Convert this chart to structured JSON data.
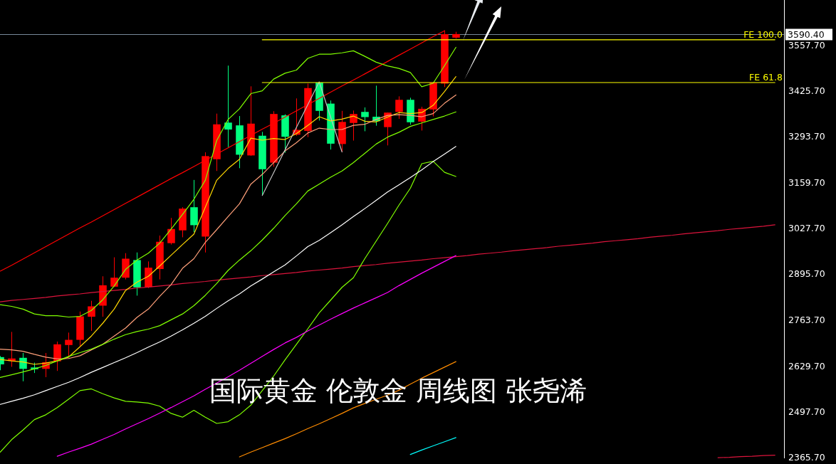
{
  "chart_data": {
    "type": "candlestick",
    "title": "国际黄金 伦敦金 周线图 张尧浠",
    "categories": [
      null,
      null,
      null,
      null,
      null,
      null,
      null,
      null,
      null,
      null,
      null,
      null,
      null,
      null,
      null,
      null,
      null,
      null,
      null,
      null,
      null,
      null,
      null,
      null,
      null,
      null,
      null,
      null,
      null,
      null,
      null,
      null,
      null,
      null,
      null,
      null,
      null,
      null,
      null,
      null,
      null,
      null,
      null,
      null,
      null,
      null,
      null,
      null,
      null,
      null,
      null,
      null,
      null,
      null,
      null,
      null,
      null,
      null,
      null,
      null,
      null,
      null,
      null,
      null,
      null,
      null,
      null,
      null,
      null
    ],
    "ohlc": [
      [
        2655,
        2658,
        2617,
        2634
      ],
      [
        2644,
        2728,
        2627,
        2651
      ],
      [
        2653,
        2667,
        2585,
        2621
      ],
      [
        2625,
        2639,
        2609,
        2620
      ],
      [
        2621,
        2667,
        2597,
        2640
      ],
      [
        2643,
        2700,
        2615,
        2692
      ],
      [
        2690,
        2726,
        2658,
        2705
      ],
      [
        2705,
        2787,
        2688,
        2773
      ],
      [
        2772,
        2818,
        2731,
        2802
      ],
      [
        2804,
        2889,
        2772,
        2863
      ],
      [
        2859,
        2944,
        2858,
        2885
      ],
      [
        2885,
        2956,
        2880,
        2940
      ],
      [
        2936,
        2958,
        2833,
        2857
      ],
      [
        2858,
        2932,
        2855,
        2914
      ],
      [
        2910,
        3007,
        2880,
        2989
      ],
      [
        2985,
        3058,
        2981,
        3026
      ],
      [
        3022,
        3089,
        3002,
        3085
      ],
      [
        3089,
        3168,
        3017,
        3037
      ],
      [
        3004,
        3248,
        2958,
        3237
      ],
      [
        3228,
        3360,
        3194,
        3329
      ],
      [
        3334,
        3499,
        3263,
        3314
      ],
      [
        3326,
        3353,
        3202,
        3241
      ],
      [
        3239,
        3439,
        3238,
        3331
      ],
      [
        3296,
        3307,
        3123,
        3199
      ],
      [
        3218,
        3367,
        3206,
        3359
      ],
      [
        3355,
        3358,
        3247,
        3293
      ],
      [
        3299,
        3404,
        3296,
        3313
      ],
      [
        3310,
        3447,
        3292,
        3434
      ],
      [
        3450,
        3452,
        3340,
        3368
      ],
      [
        3389,
        3398,
        3256,
        3273
      ],
      [
        3272,
        3368,
        3249,
        3336
      ],
      [
        3333,
        3369,
        3282,
        3359
      ],
      [
        3365,
        3378,
        3309,
        3350
      ],
      [
        3351,
        3441,
        3325,
        3338
      ],
      [
        3321,
        3363,
        3268,
        3363
      ],
      [
        3365,
        3410,
        3345,
        3400
      ],
      [
        3400,
        3406,
        3328,
        3335
      ],
      [
        3337,
        3380,
        3311,
        3374
      ],
      [
        3372,
        3450,
        3352,
        3450
      ],
      [
        3447,
        3601,
        3437,
        3590
      ],
      [
        3580,
        3597,
        3577,
        3590.4
      ],
      null,
      null,
      null,
      null,
      null,
      null,
      null,
      null,
      null,
      null,
      null,
      null,
      null,
      null,
      null,
      null,
      null,
      null,
      null,
      null,
      null,
      null,
      null,
      null,
      null,
      null,
      null,
      null
    ],
    "colors": [
      "#00ff7f",
      "#ff0000",
      "#00ff7f",
      "#00ff7f",
      "#ff0000",
      "#ff0000",
      "#ff0000",
      "#ff0000",
      "#ff0000",
      "#ff0000",
      "#ff0000",
      "#ff0000",
      "#00ff7f",
      "#ff0000",
      "#ff0000",
      "#ff0000",
      "#ff0000",
      "#00ff7f",
      "#ff0000",
      "#ff0000",
      "#00ff7f",
      "#00ff7f",
      "#ff0000",
      "#00ff7f",
      "#ff0000",
      "#00ff7f",
      "#ff0000",
      "#ff0000",
      "#00ff7f",
      "#00ff7f",
      "#ff0000",
      "#ff0000",
      "#00ff7f",
      "#00ff7f",
      "#ff0000",
      "#ff0000",
      "#00ff7f",
      "#ff0000",
      "#ff0000",
      "#ff0000",
      "#ff0000",
      null,
      null,
      null,
      null,
      null,
      null,
      null,
      null,
      null,
      null,
      null,
      null,
      null,
      null,
      null,
      null,
      null,
      null,
      null,
      null,
      null,
      null,
      null,
      null,
      null,
      null,
      null,
      null
    ],
    "series": [
      {
        "type": "line",
        "color": "#ff0000",
        "values": [
          2904,
          2921,
          2939,
          2957,
          2975,
          2993,
          3011,
          3029,
          3046,
          3064,
          3082,
          3100,
          3118,
          3136,
          3154,
          3172,
          3189,
          3207,
          3225,
          3243,
          3261,
          3279,
          3297,
          3315,
          3332,
          3350,
          3368,
          3386,
          3404,
          3422,
          3440,
          3457,
          3475,
          3493,
          3511,
          3529,
          3547,
          3565,
          3583,
          3600,
          null,
          null,
          null,
          null,
          null,
          null,
          null,
          null,
          null,
          null,
          null,
          null,
          null,
          null,
          null,
          null,
          null,
          null,
          null,
          null,
          null,
          null,
          null,
          null,
          null,
          null,
          null,
          null,
          null
        ]
      },
      {
        "type": "line",
        "color": "#dc143c",
        "values": [
          2815,
          2819,
          2822,
          2825,
          2828,
          2832,
          2835,
          2838,
          2842,
          2845,
          2848,
          2851,
          2855,
          2858,
          2861,
          2864,
          2868,
          2871,
          2874,
          2878,
          2881,
          2884,
          2887,
          2891,
          2894,
          2897,
          2900,
          2904,
          2907,
          2910,
          2913,
          2917,
          2920,
          2923,
          2927,
          2930,
          2933,
          2936,
          2940,
          2943,
          2946,
          2949,
          2953,
          2956,
          2959,
          2963,
          2966,
          2969,
          2972,
          2976,
          2979,
          2982,
          2985,
          2989,
          2992,
          2995,
          2998,
          3002,
          3005,
          3008,
          3012,
          3015,
          3018,
          3021,
          3025,
          3028,
          3031,
          3034,
          3038
        ]
      },
      {
        "type": "line",
        "color": "#dc143c",
        "values": [
          null,
          null,
          null,
          null,
          null,
          null,
          null,
          null,
          null,
          null,
          null,
          null,
          null,
          null,
          null,
          null,
          null,
          null,
          null,
          null,
          null,
          null,
          null,
          null,
          null,
          null,
          null,
          null,
          null,
          null,
          null,
          null,
          null,
          null,
          null,
          null,
          null,
          null,
          null,
          null,
          null,
          null,
          null,
          null,
          null,
          null,
          null,
          null,
          null,
          null,
          null,
          null,
          null,
          null,
          null,
          null,
          null,
          null,
          null,
          null,
          null,
          null,
          null,
          2364,
          2365,
          2367,
          2368,
          2370,
          2371
        ]
      },
      {
        "type": "line",
        "color": "#ffd700",
        "values": [
          2648,
          2644,
          2641,
          2634,
          2638,
          2644,
          2655,
          2685,
          2716,
          2753,
          2794,
          2848,
          2872,
          2889,
          2919,
          2950,
          2981,
          3011,
          3089,
          3167,
          3201,
          3228,
          3289,
          3283,
          3288,
          3285,
          3302,
          3326,
          3351,
          3339,
          3344,
          3353,
          3338,
          3336,
          3350,
          3363,
          3360,
          3363,
          3384,
          3424,
          3467,
          null,
          null,
          null,
          null,
          null,
          null,
          null,
          null,
          null,
          null,
          null,
          null,
          null,
          null,
          null,
          null,
          null,
          null,
          null,
          null,
          null,
          null,
          null,
          null,
          null,
          null,
          null,
          null
        ]
      },
      {
        "type": "line",
        "color": "#ffa07a",
        "values": [
          2678,
          2676,
          2672,
          2663,
          2655,
          2650,
          2651,
          2659,
          2676,
          2692,
          2716,
          2739,
          2770,
          2794,
          2831,
          2865,
          2912,
          2940,
          2987,
          3024,
          3062,
          3099,
          3156,
          3184,
          3218,
          3252,
          3276,
          3304,
          3318,
          3314,
          3314,
          3326,
          3329,
          3343,
          3355,
          3357,
          3355,
          3351,
          3360,
          3390,
          3414,
          null,
          null,
          null,
          null,
          null,
          null,
          null,
          null,
          null,
          null,
          null,
          null,
          null,
          null,
          null,
          null,
          null,
          null,
          null,
          null,
          null,
          null,
          null,
          null,
          null,
          null,
          null,
          null
        ]
      },
      {
        "type": "line",
        "color": "#80ff00",
        "values": [
          2596,
          2604,
          2612,
          2621,
          2631,
          2644,
          2657,
          2668,
          2678,
          2692,
          2707,
          2720,
          2729,
          2736,
          2746,
          2763,
          2780,
          2804,
          2834,
          2868,
          2906,
          2936,
          2963,
          2994,
          3028,
          3065,
          3099,
          3136,
          3156,
          3176,
          3194,
          3218,
          3245,
          3272,
          3292,
          3306,
          3323,
          3333,
          3343,
          3353,
          3365,
          null,
          null,
          null,
          null,
          null,
          null,
          null,
          null,
          null,
          null,
          null,
          null,
          null,
          null,
          null,
          null,
          null,
          null,
          null,
          null,
          null,
          null,
          null,
          null,
          null,
          null,
          null,
          null
        ]
      },
      {
        "type": "line",
        "color": "#80ff00",
        "values": [
          2807,
          2802,
          2794,
          2780,
          2775,
          2775,
          2771,
          2773,
          2790,
          2821,
          2861,
          2909,
          2936,
          2956,
          2985,
          3026,
          3068,
          3112,
          3167,
          3282,
          3343,
          3374,
          3418,
          3426,
          3460,
          3477,
          3486,
          3520,
          3532,
          3532,
          3536,
          3542,
          3526,
          3509,
          3498,
          3491,
          3479,
          3438,
          3448,
          3499,
          3552,
          null,
          null,
          null,
          null,
          null,
          null,
          null,
          null,
          null,
          null,
          null,
          null,
          null,
          null,
          null,
          null,
          null,
          null,
          null,
          null,
          null,
          null,
          null,
          null,
          null,
          null,
          null,
          null
        ]
      },
      {
        "type": "line",
        "color": "#80ff00",
        "values": [
          2380,
          2416,
          2444,
          2474,
          2488,
          2509,
          2533,
          2558,
          2563,
          2549,
          2537,
          2527,
          2525,
          2522,
          2513,
          2492,
          2481,
          2501,
          2481,
          2463,
          2468,
          2488,
          2516,
          2558,
          2600,
          2647,
          2692,
          2737,
          2783,
          2820,
          2857,
          2885,
          2940,
          2991,
          3042,
          3095,
          3144,
          3215,
          3222,
          3190,
          3178,
          null,
          null,
          null,
          null,
          null,
          null,
          null,
          null,
          null,
          null,
          null,
          null,
          null,
          null,
          null,
          null,
          null,
          null,
          null,
          null,
          null,
          null,
          null,
          null,
          null,
          null,
          null,
          null
        ]
      },
      {
        "type": "line",
        "color": "#ffffff",
        "values": [
          2518,
          2527,
          2536,
          2546,
          2558,
          2570,
          2582,
          2596,
          2611,
          2625,
          2639,
          2653,
          2668,
          2684,
          2699,
          2716,
          2734,
          2753,
          2773,
          2796,
          2818,
          2838,
          2861,
          2881,
          2902,
          2922,
          2948,
          2975,
          2993,
          3015,
          3038,
          3062,
          3085,
          3109,
          3133,
          3154,
          3175,
          3197,
          3221,
          3243,
          3265,
          null,
          null,
          null,
          null,
          null,
          null,
          null,
          null,
          null,
          null,
          null,
          null,
          null,
          null,
          null,
          null,
          null,
          null,
          null,
          null,
          null,
          null,
          null,
          null,
          null,
          null,
          null,
          null
        ]
      },
      {
        "type": "line",
        "color": "#ff00ff",
        "values": [
          null,
          null,
          null,
          null,
          null,
          2368,
          2380,
          2391,
          2403,
          2417,
          2431,
          2447,
          2462,
          2477,
          2493,
          2509,
          2526,
          2543,
          2562,
          2580,
          2598,
          2617,
          2637,
          2657,
          2677,
          2696,
          2712,
          2731,
          2748,
          2765,
          2781,
          2797,
          2812,
          2827,
          2842,
          2862,
          2880,
          2898,
          2915,
          2932,
          2949,
          null,
          null,
          null,
          null,
          null,
          null,
          null,
          null,
          null,
          null,
          null,
          null,
          null,
          null,
          null,
          null,
          null,
          null,
          null,
          null,
          null,
          null,
          null,
          null,
          null,
          null,
          null,
          null
        ]
      },
      {
        "type": "line",
        "color": "#ff8c00",
        "values": [
          null,
          null,
          null,
          null,
          null,
          null,
          null,
          null,
          null,
          null,
          null,
          null,
          null,
          null,
          null,
          null,
          null,
          null,
          null,
          null,
          null,
          2366,
          2380,
          2393,
          2406,
          2419,
          2433,
          2448,
          2462,
          2477,
          2492,
          2508,
          2521,
          2533,
          2545,
          2559,
          2577,
          2594,
          2610,
          2626,
          2642,
          null,
          null,
          null,
          null,
          null,
          null,
          null,
          null,
          null,
          null,
          null,
          null,
          null,
          null,
          null,
          null,
          null,
          null,
          null,
          null,
          null,
          null,
          null,
          null,
          null,
          null,
          null,
          null
        ]
      },
      {
        "type": "line",
        "color": "#00ffff",
        "values": [
          null,
          null,
          null,
          null,
          null,
          null,
          null,
          null,
          null,
          null,
          null,
          null,
          null,
          null,
          null,
          null,
          null,
          null,
          null,
          null,
          null,
          null,
          null,
          null,
          null,
          null,
          null,
          null,
          null,
          null,
          null,
          null,
          null,
          null,
          null,
          null,
          2373,
          2386,
          2398,
          2410,
          2422,
          null,
          null,
          null,
          null,
          null,
          null,
          null,
          null,
          null,
          null,
          null,
          null,
          null,
          null,
          null,
          null,
          null,
          null,
          null,
          null,
          null,
          null,
          null,
          null,
          null,
          null,
          null,
          null
        ]
      },
      {
        "type": "line",
        "color": "#c0c0c0",
        "values": [
          null,
          null,
          null,
          null,
          null,
          null,
          null,
          null,
          null,
          null,
          null,
          null,
          null,
          null,
          null,
          null,
          null,
          null,
          null,
          null,
          null,
          null,
          null,
          3123,
          3189,
          3255,
          3320,
          3386,
          3452,
          3350,
          3249,
          null,
          null,
          null,
          null,
          null,
          null,
          null,
          null,
          null,
          null,
          null,
          null,
          null,
          null,
          null,
          null,
          null,
          null,
          null,
          null,
          null,
          null,
          null,
          null,
          null,
          null,
          null,
          null,
          null,
          null,
          null,
          null,
          null,
          null,
          null,
          null,
          null,
          null
        ]
      },
      {
        "type": "line",
        "name": "FE 100.0",
        "color": "#ffff00",
        "values": [
          null,
          null,
          null,
          null,
          null,
          null,
          null,
          null,
          null,
          null,
          null,
          null,
          null,
          null,
          null,
          null,
          null,
          null,
          null,
          null,
          null,
          null,
          null,
          3574,
          3574,
          3574,
          3574,
          3574,
          3574,
          3574,
          3574,
          3574,
          3574,
          3574,
          3574,
          3574,
          3574,
          3574,
          3574,
          3574,
          3574,
          3574,
          3574,
          3574,
          3574,
          3574,
          3574,
          3574,
          3574,
          3574,
          3574,
          3574,
          3574,
          3574,
          3574,
          3574,
          3574,
          3574,
          3574,
          3574,
          3574,
          3574,
          3574,
          3574,
          3574,
          3574,
          3574,
          3574,
          3574
        ]
      },
      {
        "type": "line",
        "name": "FE 61.8",
        "color": "#ffff00",
        "values": [
          null,
          null,
          null,
          null,
          null,
          null,
          null,
          null,
          null,
          null,
          null,
          null,
          null,
          null,
          null,
          null,
          null,
          null,
          null,
          null,
          null,
          null,
          null,
          3450,
          3450,
          3450,
          3450,
          3450,
          3450,
          3450,
          3450,
          3450,
          3450,
          3450,
          3450,
          3450,
          3450,
          3450,
          3450,
          3450,
          3450,
          3450,
          3450,
          3450,
          3450,
          3450,
          3450,
          3450,
          3450,
          3450,
          3450,
          3450,
          3450,
          3450,
          3450,
          3450,
          3450,
          3450,
          3450,
          3450,
          3450,
          3450,
          3450,
          3450,
          3450,
          3450,
          3450,
          3450,
          3450
        ]
      }
    ],
    "ylim": [
      2362,
      3689
    ],
    "yticks": [
      {
        "value": 3557.7,
        "label": "3557.70"
      },
      {
        "value": 3425.7,
        "label": "3425.70"
      },
      {
        "value": 3293.7,
        "label": "3293.70"
      },
      {
        "value": 3159.7,
        "label": "3159.70"
      },
      {
        "value": 3027.7,
        "label": "3027.70"
      },
      {
        "value": 2895.7,
        "label": "2895.70"
      },
      {
        "value": 2763.7,
        "label": "2763.70"
      },
      {
        "value": 2629.7,
        "label": "2629.70"
      },
      {
        "value": 2497.7,
        "label": "2497.70"
      },
      {
        "value": 2365.7,
        "label": "2365.70"
      }
    ],
    "tick_labels": "y",
    "ref_lines": [
      {
        "axis": "y",
        "value": 3590.4,
        "label": "3590.40",
        "color": "#778899"
      }
    ]
  }
}
